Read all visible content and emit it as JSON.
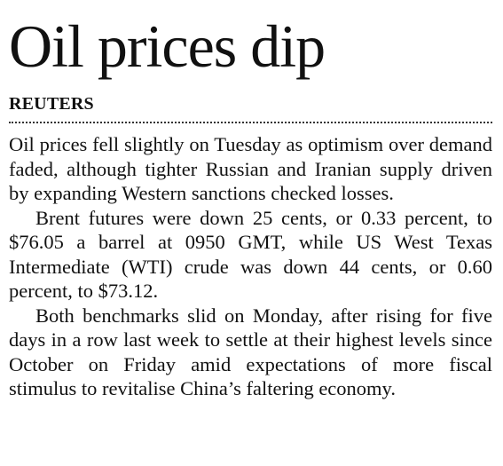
{
  "article": {
    "headline": "Oil prices dip",
    "byline": "REUTERS",
    "paragraphs": [
      "Oil prices fell slightly on Tuesday as optimism over demand faded, although tighter Russian and Iranian supply driven by expanding Western sanctions checked losses.",
      "Brent futures were down 25 cents, or 0.33 percent, to $76.05 a barrel at 0950 GMT, while US West Texas Intermediate (WTI) crude was down 44 cents, or 0.60 percent, to $73.12.",
      "Both benchmarks slid on Monday, after rising for five days in a row last week to settle at their highest levels since October on Friday amid expectations of more fiscal stimulus to revitalise China’s faltering economy."
    ]
  }
}
